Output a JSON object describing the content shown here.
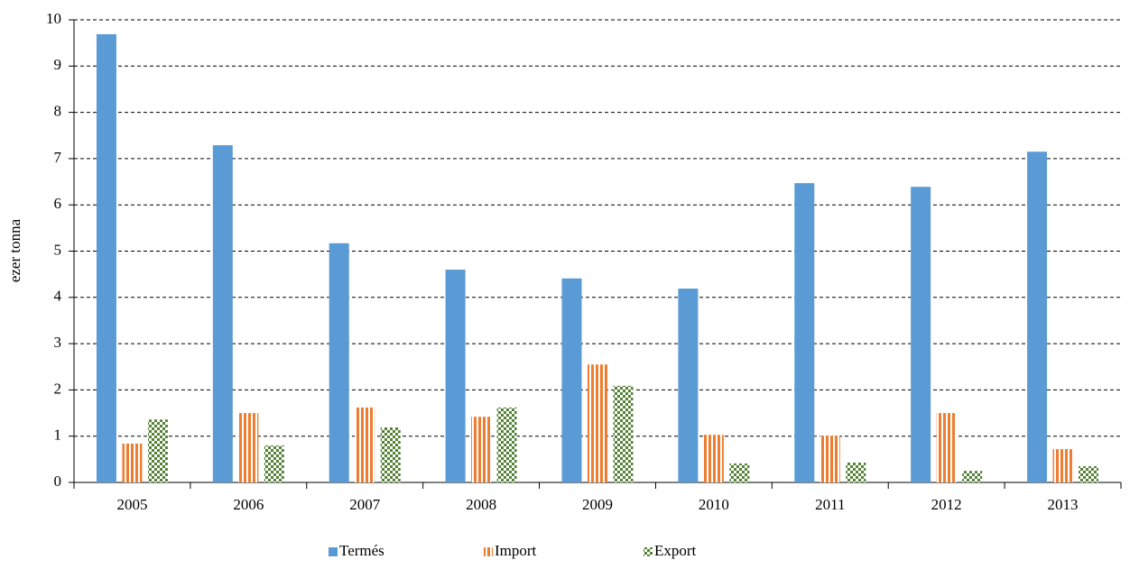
{
  "chart_data": {
    "type": "bar",
    "y_label": "ezer tonna",
    "categories": [
      "2005",
      "2006",
      "2007",
      "2008",
      "2009",
      "2010",
      "2011",
      "2012",
      "2013"
    ],
    "series": [
      {
        "name": "Termés",
        "color": "#5b9bd5",
        "pattern": "solid",
        "values": [
          9.69,
          7.29,
          5.17,
          4.6,
          4.41,
          4.19,
          6.47,
          6.39,
          7.15
        ]
      },
      {
        "name": "Import",
        "color": "#ed7d31",
        "pattern": "vertical-stripes",
        "values": [
          0.84,
          1.5,
          1.62,
          1.42,
          2.55,
          1.03,
          1.01,
          1.5,
          0.72
        ]
      },
      {
        "name": "Export",
        "color": "#548235",
        "pattern": "checker",
        "values": [
          1.36,
          0.8,
          1.19,
          1.62,
          2.09,
          0.41,
          0.43,
          0.25,
          0.35
        ]
      }
    ],
    "ylim": [
      0,
      10
    ],
    "yticks": [
      0,
      1,
      2,
      3,
      4,
      5,
      6,
      7,
      8,
      9,
      10
    ],
    "grid": true,
    "legend": "bottom"
  }
}
